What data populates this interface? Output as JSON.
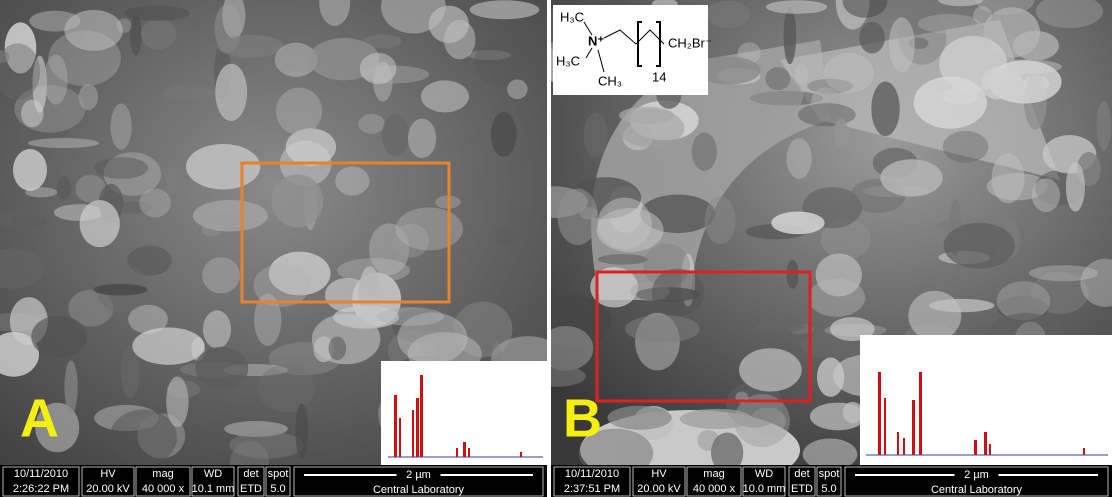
{
  "panels": [
    {
      "label": "A",
      "date": "10/11/2010",
      "time": "2:26:22 PM",
      "hv_label": "HV",
      "hv": "20.00 kV",
      "mag_label": "mag",
      "mag": "40 000 x",
      "wd_label": "WD",
      "wd": "10.1 mm",
      "det_label": "det",
      "det": "ETD",
      "spot_label": "spot",
      "spot": "5.0",
      "scale": "2 µm",
      "lab": "Central Laboratory"
    },
    {
      "label": "B",
      "date": "10/11/2010",
      "time": "2:37:51 PM",
      "hv_label": "HV",
      "hv": "20.00 kV",
      "mag_label": "mag",
      "mag": "40 000 x",
      "wd_label": "WD",
      "wd": "10.0 mm",
      "det_label": "det",
      "det": "ETD",
      "spot_label": "spot",
      "spot": "5.0",
      "scale": "2 µm",
      "lab": "Central Laboratory"
    }
  ],
  "structure": {
    "methyl_top": "H₃C",
    "nitrogen": "N⁺",
    "methyl_left": "H₃C",
    "methyl_bottom": "CH₃",
    "repeat": "14",
    "end_group": "CH₂Br⁻"
  }
}
